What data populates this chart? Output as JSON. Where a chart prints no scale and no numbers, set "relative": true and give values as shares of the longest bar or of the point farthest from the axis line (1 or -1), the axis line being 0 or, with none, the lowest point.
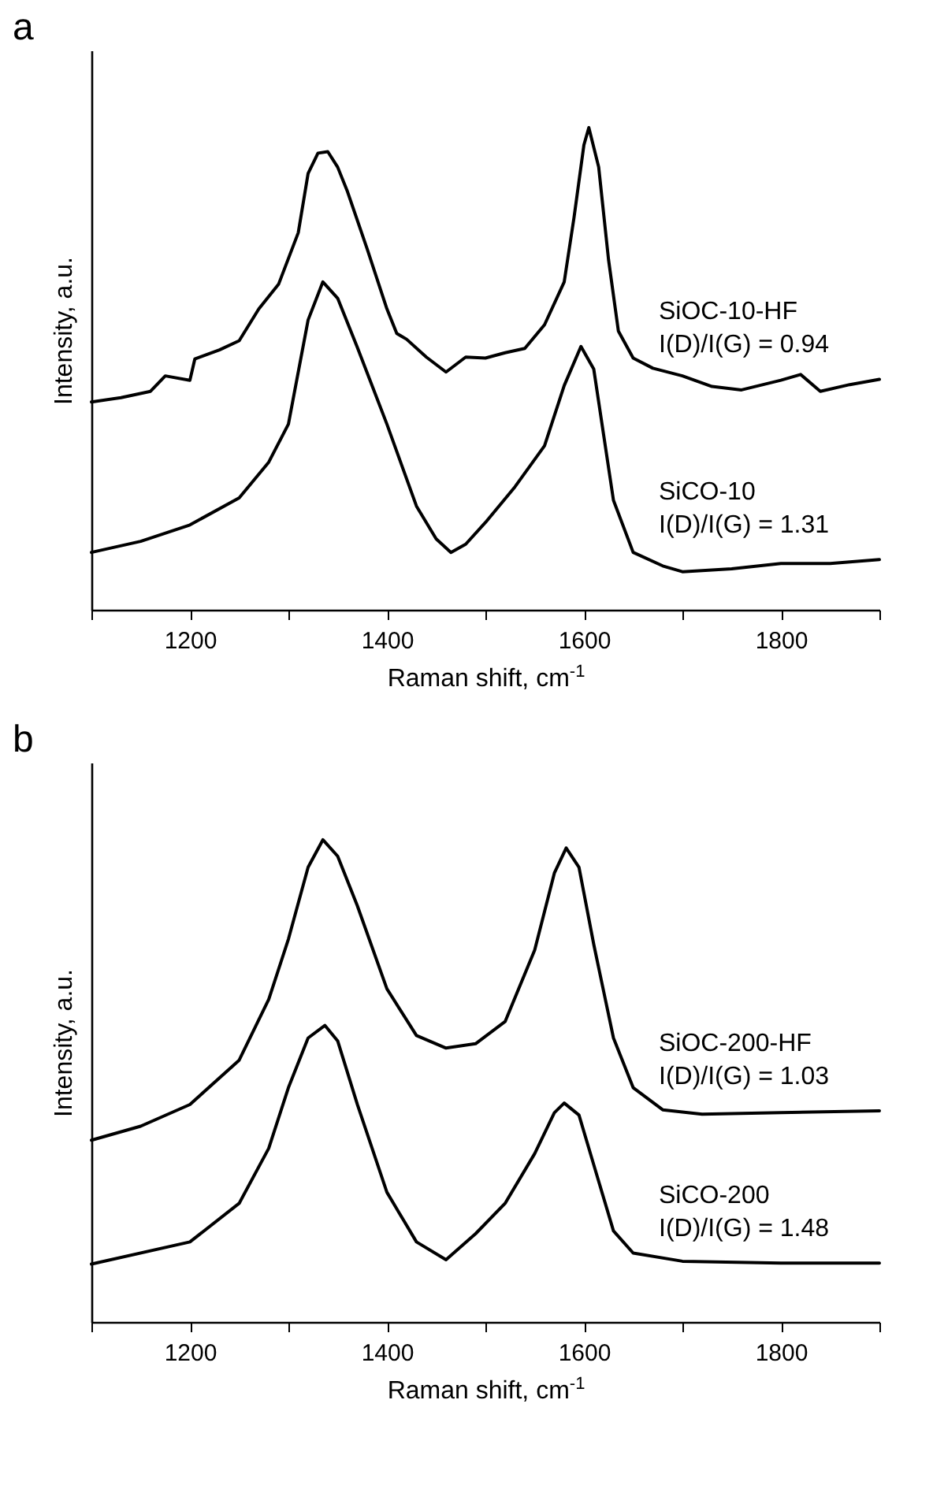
{
  "chart_data": [
    {
      "type": "line",
      "title": "a",
      "xlabel": "Raman shift, cm$^{-1}$",
      "ylabel": "Intensity, a.u.",
      "relative": true,
      "xlim": [
        1100,
        1900
      ],
      "xticks": [
        {
          "value": 1100,
          "label": null
        },
        1200,
        {
          "value": 1300,
          "label": null
        },
        1400,
        {
          "value": 1500,
          "label": null
        },
        1600,
        {
          "value": 1700,
          "label": null
        },
        1800,
        {
          "value": 1900,
          "label": null
        }
      ],
      "tick_labels": "x",
      "grid": false,
      "marker": "none",
      "line_style": "solid",
      "annotations": [
        "I(D)/I(G) = 0.94",
        "I(D)/I(G) = 1.31"
      ],
      "series": [
        {
          "name": "SiOC-10-HF",
          "color": "#000000",
          "x": [
            1100,
            1130,
            1160,
            1175,
            1200,
            1205,
            1230,
            1250,
            1270,
            1290,
            1310,
            1320,
            1330,
            1340,
            1350,
            1360,
            1380,
            1400,
            1410,
            1420,
            1440,
            1460,
            1480,
            1500,
            1520,
            1540,
            1560,
            1580,
            1590,
            1600,
            1605,
            1615,
            1625,
            1635,
            1650,
            1670,
            1700,
            1730,
            1760,
            1800,
            1820,
            1840,
            1870,
            1900
          ],
          "values": [
            0.431,
            0.44,
            0.453,
            0.485,
            0.476,
            0.52,
            0.539,
            0.558,
            0.624,
            0.675,
            0.782,
            0.905,
            0.947,
            0.95,
            0.918,
            0.867,
            0.748,
            0.624,
            0.573,
            0.561,
            0.524,
            0.493,
            0.524,
            0.522,
            0.533,
            0.542,
            0.591,
            0.68,
            0.814,
            0.964,
            1.0,
            0.918,
            0.726,
            0.578,
            0.522,
            0.501,
            0.485,
            0.463,
            0.456,
            0.476,
            0.488,
            0.453,
            0.467,
            0.478
          ]
        },
        {
          "name": "SiCO-10",
          "color": "#000000",
          "x": [
            1100,
            1150,
            1200,
            1250,
            1280,
            1300,
            1320,
            1335,
            1350,
            1370,
            1400,
            1430,
            1450,
            1465,
            1480,
            1500,
            1530,
            1560,
            1580,
            1597,
            1610,
            1630,
            1650,
            1680,
            1700,
            1750,
            1800,
            1850,
            1900
          ],
          "values": [
            0.119,
            0.142,
            0.176,
            0.232,
            0.306,
            0.385,
            0.601,
            0.68,
            0.646,
            0.544,
            0.385,
            0.215,
            0.147,
            0.119,
            0.136,
            0.181,
            0.255,
            0.34,
            0.465,
            0.546,
            0.499,
            0.227,
            0.119,
            0.091,
            0.079,
            0.085,
            0.096,
            0.096,
            0.104
          ]
        }
      ]
    },
    {
      "type": "line",
      "title": "b",
      "xlabel": "Raman shift, cm$^{-1}$",
      "ylabel": "Intensity, a.u.",
      "relative": true,
      "xlim": [
        1100,
        1900
      ],
      "xticks": [
        {
          "value": 1100,
          "label": null
        },
        1200,
        {
          "value": 1300,
          "label": null
        },
        1400,
        {
          "value": 1500,
          "label": null
        },
        1600,
        {
          "value": 1700,
          "label": null
        },
        1800,
        {
          "value": 1900,
          "label": null
        }
      ],
      "tick_labels": "x",
      "grid": false,
      "marker": "none",
      "line_style": "solid",
      "annotations": [
        "I(D)/I(G) = 1.03",
        "I(D)/I(G) = 1.48"
      ],
      "series": [
        {
          "name": "SiOC-200-HF",
          "color": "#000000",
          "x": [
            1100,
            1150,
            1200,
            1250,
            1280,
            1300,
            1320,
            1335,
            1350,
            1370,
            1400,
            1430,
            1460,
            1490,
            1520,
            1550,
            1570,
            1582,
            1595,
            1610,
            1630,
            1650,
            1680,
            1720,
            1800,
            1900
          ],
          "values": [
            0.377,
            0.406,
            0.451,
            0.543,
            0.669,
            0.794,
            0.943,
            1.0,
            0.966,
            0.863,
            0.691,
            0.594,
            0.568,
            0.577,
            0.623,
            0.771,
            0.931,
            0.983,
            0.943,
            0.783,
            0.589,
            0.486,
            0.44,
            0.431,
            0.434,
            0.438
          ]
        },
        {
          "name": "SiCO-200",
          "color": "#000000",
          "x": [
            1100,
            1200,
            1250,
            1280,
            1300,
            1320,
            1337,
            1350,
            1370,
            1400,
            1430,
            1460,
            1490,
            1520,
            1550,
            1570,
            1580,
            1595,
            1610,
            1630,
            1650,
            1700,
            1800,
            1900
          ],
          "values": [
            0.12,
            0.166,
            0.246,
            0.36,
            0.486,
            0.589,
            0.615,
            0.583,
            0.451,
            0.269,
            0.166,
            0.129,
            0.183,
            0.246,
            0.349,
            0.434,
            0.454,
            0.429,
            0.326,
            0.189,
            0.143,
            0.126,
            0.122,
            0.122
          ]
        }
      ]
    }
  ]
}
